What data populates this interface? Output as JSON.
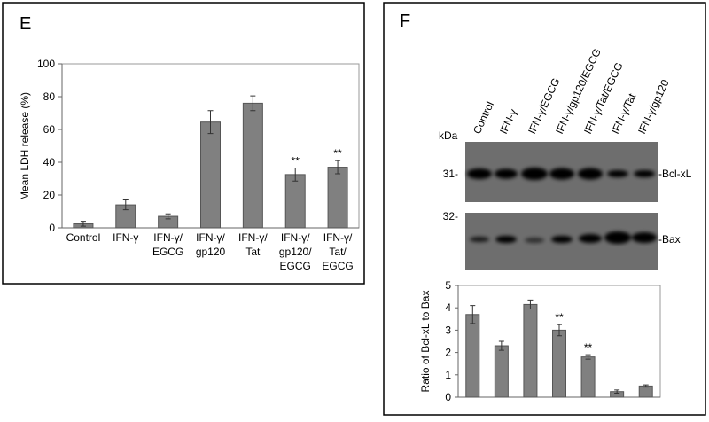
{
  "chart_data": [
    {
      "type": "bar",
      "panel": "E",
      "ylabel": "Mean LDH release (%)",
      "categories": [
        [
          "Control"
        ],
        [
          "IFN-γ"
        ],
        [
          "IFN-γ/",
          "EGCG"
        ],
        [
          "IFN-γ/",
          "gp120"
        ],
        [
          "IFN-γ/",
          "Tat"
        ],
        [
          "IFN-γ/",
          "gp120/",
          "EGCG"
        ],
        [
          "IFN-γ/",
          "Tat/",
          "EGCG"
        ]
      ],
      "values": [
        2.5,
        14,
        7,
        64.5,
        76,
        32.5,
        37
      ],
      "errors": [
        1.5,
        3,
        1.5,
        7,
        4.5,
        4,
        4
      ],
      "value_annotations": [
        null,
        null,
        null,
        null,
        null,
        "**",
        "**"
      ],
      "color": "#808080",
      "ylim": [
        0,
        100
      ],
      "yticks": [
        0,
        20,
        40,
        60,
        80,
        100
      ]
    },
    {
      "type": "bar",
      "panel": "F",
      "ylabel": "Ratio of Bcl-xL to Bax",
      "categories": [
        "Control",
        "IFN-γ",
        "IFN-γ/EGCG",
        "IFN-γ/gp120/EGCG",
        "IFN-γ/Tat/EGCG",
        "IFN-γ/Tat",
        "IFN-γ/gp120"
      ],
      "values": [
        3.7,
        2.3,
        4.15,
        3.0,
        1.8,
        0.25,
        0.5
      ],
      "errors": [
        0.4,
        0.2,
        0.2,
        0.25,
        0.1,
        0.07,
        0.05
      ],
      "value_annotations": [
        null,
        null,
        null,
        "**",
        "**",
        null,
        null
      ],
      "color": "#808080",
      "ylim": [
        0,
        5
      ],
      "yticks": [
        0,
        1,
        2,
        3,
        4,
        5
      ]
    }
  ],
  "blot": {
    "unit": "kDa",
    "markers": [
      "31-",
      "32-"
    ],
    "bands": [
      "-Bcl-xL",
      "-Bax"
    ]
  }
}
